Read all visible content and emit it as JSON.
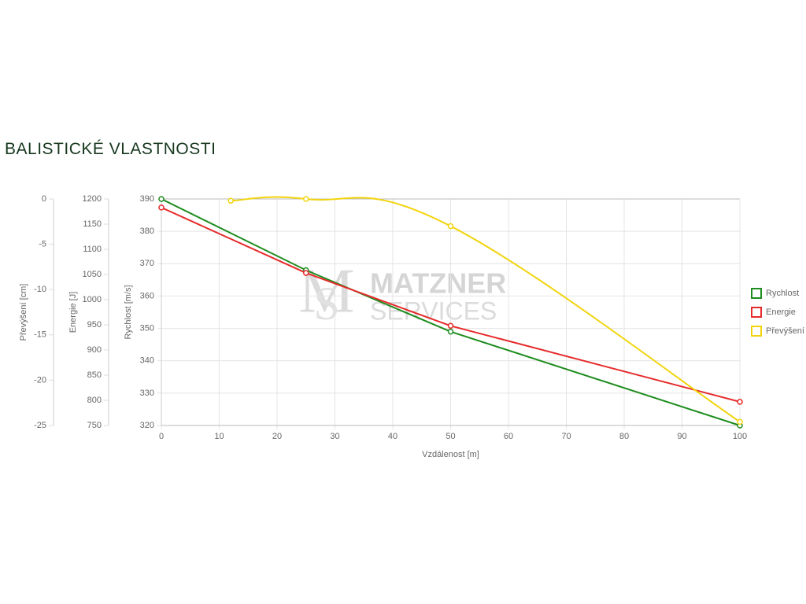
{
  "chart_data": {
    "type": "line",
    "title": "BALISTICKÉ VLASTNOSTI",
    "watermark": [
      "MATZNER",
      "SERVICES"
    ],
    "xlabel": "Vzdálenost [m]",
    "xlim": [
      0,
      100
    ],
    "xticks": [
      0,
      10,
      20,
      30,
      40,
      50,
      60,
      70,
      80,
      90,
      100
    ],
    "ylabel": "Rychlost [m/s]",
    "ylim": [
      320,
      390
    ],
    "yticks": [
      320,
      330,
      340,
      350,
      360,
      370,
      380,
      390
    ],
    "y2label": "Energie [J]",
    "y2lim": [
      750,
      1200
    ],
    "y2ticks": [
      750,
      800,
      850,
      900,
      950,
      1000,
      1050,
      1100,
      1150,
      1200
    ],
    "y3label": "Převýšení [cm]",
    "y3lim": [
      -25,
      0
    ],
    "y3ticks": [
      -25,
      -20,
      -15,
      -10,
      -5,
      0
    ],
    "grid": true,
    "legend": "right",
    "series": [
      {
        "name": "Rychlost",
        "color": "#1e8c1e",
        "axis": "y",
        "smooth": false,
        "x": [
          0,
          25,
          50,
          100
        ],
        "values": [
          390,
          368,
          349,
          320
        ]
      },
      {
        "name": "Energie",
        "color": "#e62a2a",
        "axis": "y2",
        "smooth": false,
        "x": [
          0,
          25,
          50,
          100
        ],
        "values": [
          1183,
          1053,
          948,
          797
        ]
      },
      {
        "name": "Převýšení",
        "color": "#f2d40e",
        "axis": "y3",
        "smooth": true,
        "x": [
          12,
          25,
          50,
          100
        ],
        "values": [
          -0.2,
          0,
          -3.0,
          -24.6
        ]
      }
    ]
  }
}
